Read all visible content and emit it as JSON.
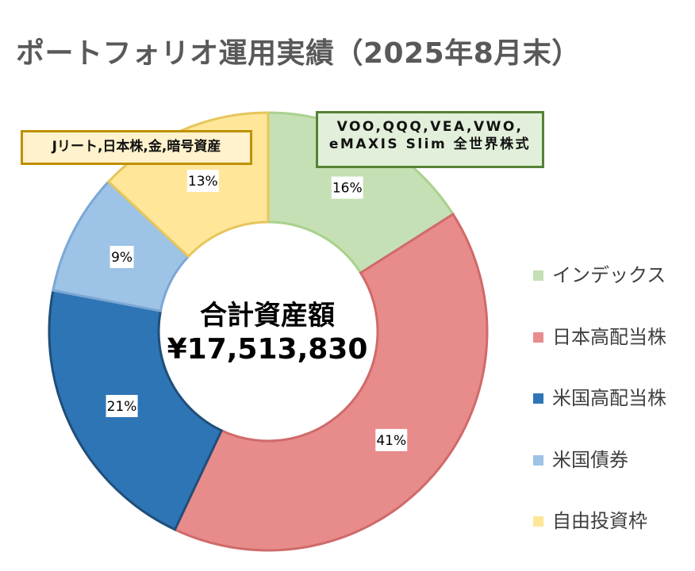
{
  "title": "ポートフォリオ運用実績（2025年8月末）",
  "center": {
    "line1": "合計資産額",
    "line2": "¥17,513,830"
  },
  "callouts": {
    "index": {
      "line1": "VOO,QQQ,VEA,VWO,",
      "line2": "eMAXIS Slim 全世界株式"
    },
    "jreit": {
      "text": "Jリート,日本株,金,暗号資産"
    }
  },
  "chart_data": {
    "type": "pie",
    "subtype": "donut",
    "title": "ポートフォリオ運用実績（2025年8月末）",
    "legend_position": "right",
    "slices": [
      {
        "label": "インデックス",
        "value": 16,
        "display": "16%",
        "color": "#c5e0b4",
        "border": "#a9d18e"
      },
      {
        "label": "日本高配当株",
        "value": 41,
        "display": "41%",
        "color": "#e88b8b",
        "border": "#d06a6a"
      },
      {
        "label": "米国高配当株",
        "value": 21,
        "display": "21%",
        "color": "#2e75b6",
        "border": "#1f4e79"
      },
      {
        "label": "米国債券",
        "value": 9,
        "display": "9%",
        "color": "#9dc3e6",
        "border": "#7ba7d4"
      },
      {
        "label": "自由投資枠",
        "value": 13,
        "display": "13%",
        "color": "#ffe699",
        "border": "#e6c65c"
      }
    ]
  }
}
